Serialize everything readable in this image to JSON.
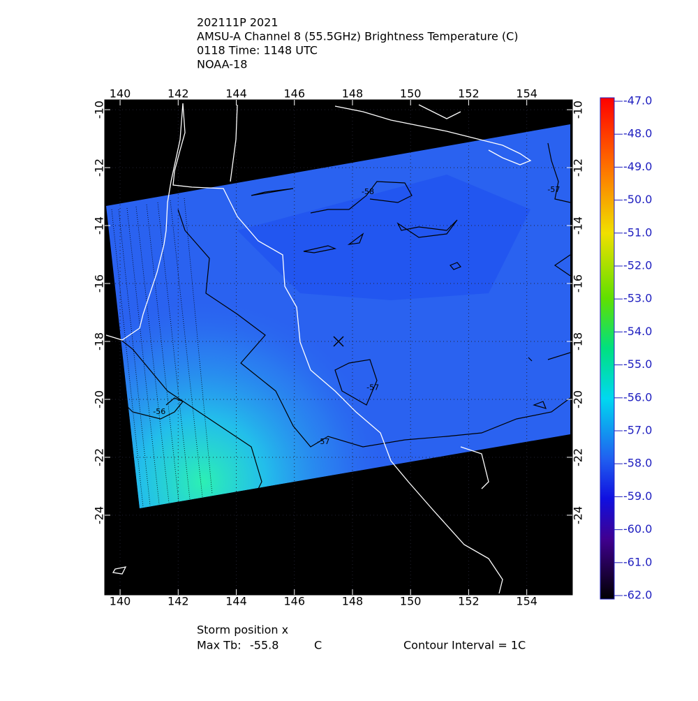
{
  "chart_data": {
    "type": "map",
    "title_lines": [
      "202111P 2021",
      "AMSU-A Channel 8 (55.5GHz) Brightness Temperature (C)",
      "0118 Time: 1148 UTC",
      "NOAA-18"
    ],
    "xlim": [
      139.47,
      155.57
    ],
    "ylim": [
      -26.75,
      -9.66
    ],
    "xticks": [
      140,
      142,
      144,
      146,
      148,
      150,
      152,
      154
    ],
    "yticks": [
      -10,
      -12,
      -14,
      -16,
      -18,
      -20,
      -22,
      -24
    ],
    "grid": true,
    "colorbar": {
      "lim": [
        -47,
        -62
      ],
      "ticks": [
        {
          "value": -47,
          "label": "-47.0"
        },
        {
          "value": -48,
          "label": "-48.0"
        },
        {
          "value": -49,
          "label": "-49.0"
        },
        {
          "value": -50,
          "label": "-50.0"
        },
        {
          "value": -51,
          "label": "-51.0"
        },
        {
          "value": -52,
          "label": "-52.0"
        },
        {
          "value": -53,
          "label": "-53.0"
        },
        {
          "value": -54,
          "label": "-54.0"
        },
        {
          "value": -55,
          "label": "-55.0"
        },
        {
          "value": -56,
          "label": "-56.0"
        },
        {
          "value": -57,
          "label": "-57.0"
        },
        {
          "value": -58,
          "label": "-58.0"
        },
        {
          "value": -59,
          "label": "-59.0"
        },
        {
          "value": -60,
          "label": "-60.0"
        },
        {
          "value": -61,
          "label": "-61.0"
        },
        {
          "value": -62,
          "label": "-62.0"
        }
      ]
    },
    "contour_labels": [
      {
        "value": -58,
        "lon": 148.53,
        "lat": -12.84
      },
      {
        "value": -57,
        "lon": 154.93,
        "lat": -12.77
      },
      {
        "value": -57,
        "lon": 147.0,
        "lat": -21.47
      },
      {
        "value": -56,
        "lon": 141.35,
        "lat": -20.43
      },
      {
        "value": -57,
        "lon": 148.7,
        "lat": -19.6
      }
    ],
    "storm_position": {
      "lon": 147.52,
      "lat": -18.0
    },
    "footer": {
      "storm_label": "Storm position x",
      "max_tb_label": "Max Tb:",
      "max_tb": -55.8,
      "max_tb_unit": "C",
      "contour_interval": "Contour Interval = 1C"
    }
  }
}
